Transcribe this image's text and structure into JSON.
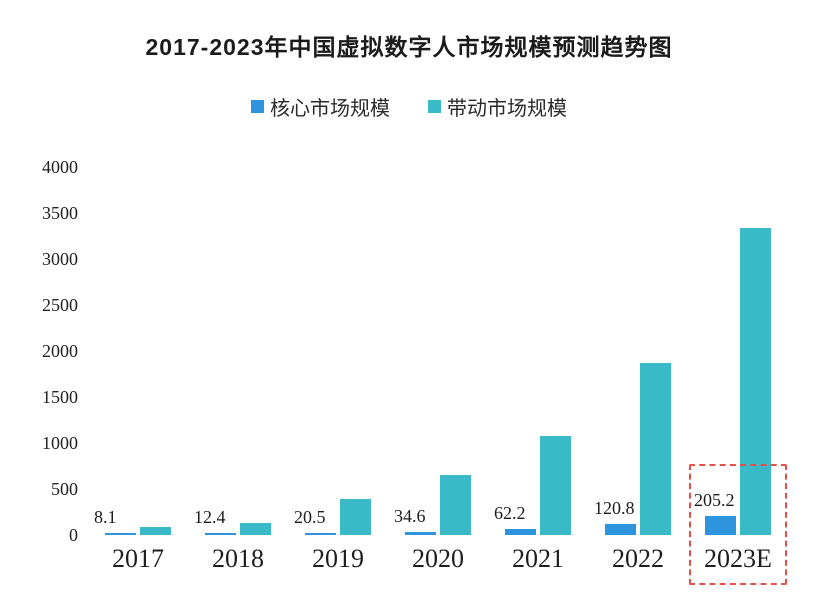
{
  "title": "2017-2023年中国虚拟数字人市场规模预测趋势图",
  "colors": {
    "core_blue": "#2e94de",
    "driven_teal": "#39bac6",
    "highlight_red": "#e2514a",
    "text_dark": "#1d1d1d",
    "background": "#ffffff"
  },
  "legend": {
    "items": [
      {
        "label": "核心市场规模",
        "color": "#2e94de"
      },
      {
        "label": "带动市场规模",
        "color": "#39bac6"
      }
    ]
  },
  "highlight": {
    "category": "2023E",
    "box_color": "#e2514a",
    "style": "dashed-box"
  },
  "chart_data": {
    "type": "bar",
    "title": "2017-2023年中国虚拟数字人市场规模预测趋势图",
    "categories": [
      "2017",
      "2018",
      "2019",
      "2020",
      "2021",
      "2022",
      "2023E"
    ],
    "series": [
      {
        "name": "核心市场规模",
        "color": "#2e94de",
        "values": [
          8.1,
          12.4,
          20.5,
          34.6,
          62.2,
          120.8,
          205.2
        ],
        "data_labels": [
          "8.1",
          "12.4",
          "20.5",
          "34.6",
          "62.2",
          "120.8",
          "205.2"
        ],
        "labels_shown": true
      },
      {
        "name": "带动市场规模",
        "color": "#39bac6",
        "values": [
          90,
          130,
          390,
          650,
          1075,
          1870,
          3335
        ],
        "values_estimated_from_bar_heights": true,
        "labels_shown": false
      }
    ],
    "xlabel": "",
    "ylabel": "",
    "ylim": [
      0,
      4000
    ],
    "yticks": [
      0,
      500,
      1000,
      1500,
      2000,
      2500,
      3000,
      3500,
      4000
    ],
    "grid": false,
    "legend_position": "top",
    "annotations": [
      {
        "type": "dashed-box",
        "category": "2023E",
        "color": "#e2514a"
      }
    ]
  }
}
